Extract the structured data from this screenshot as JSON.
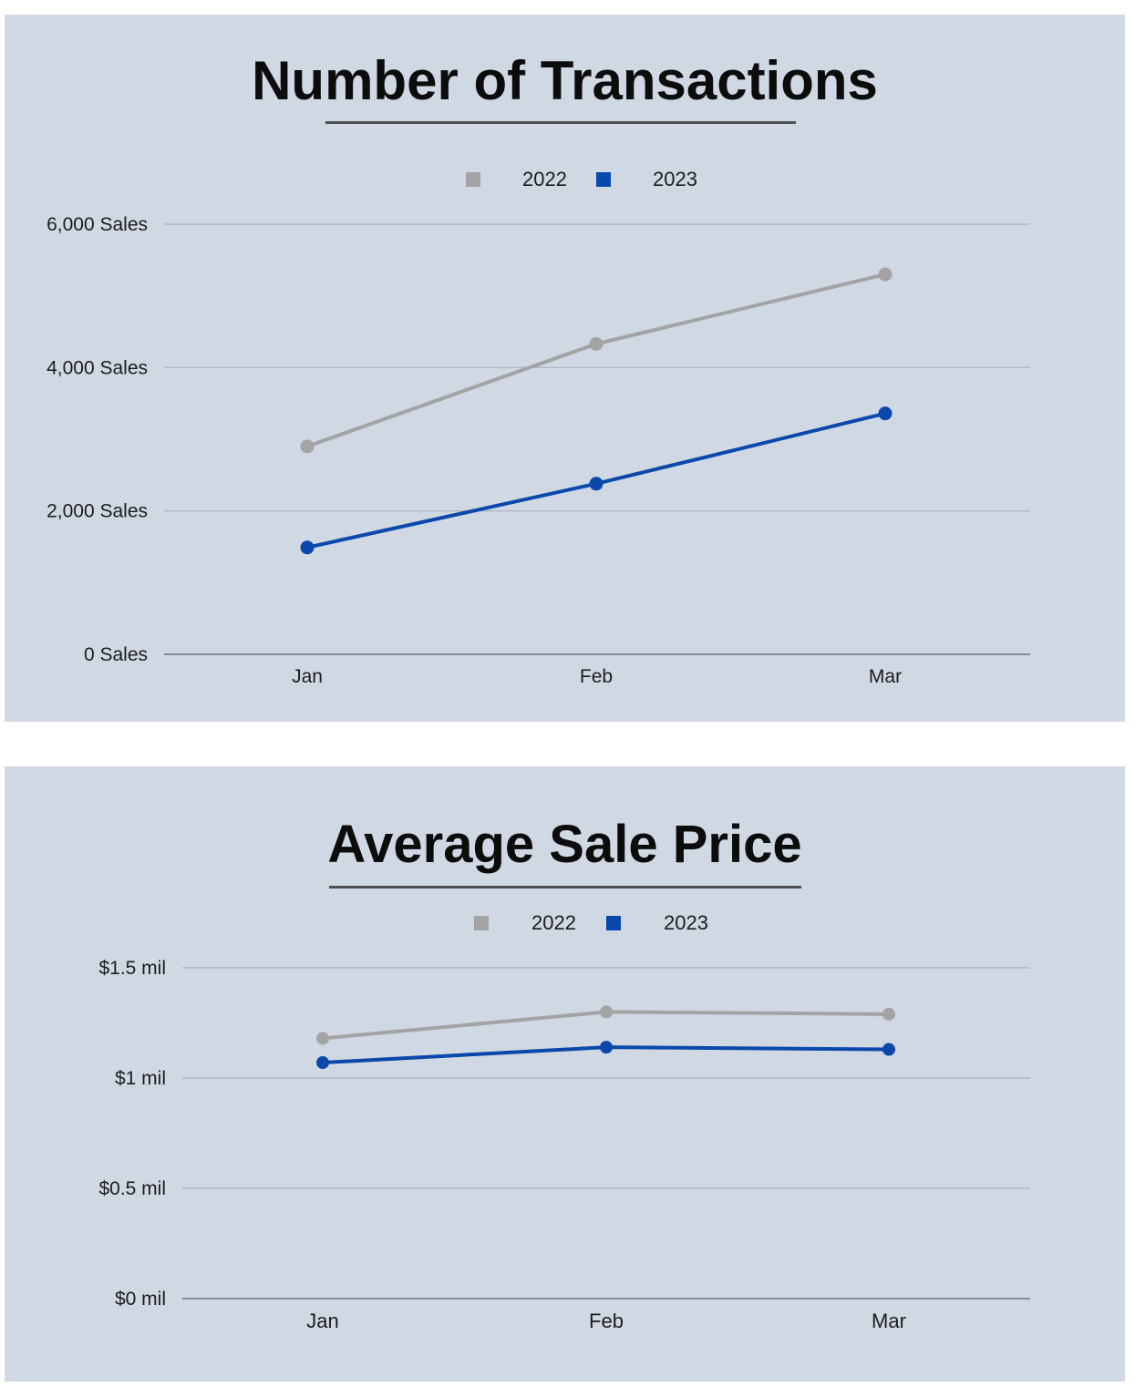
{
  "colors": {
    "panel_bg": "#d0d8e4",
    "series_2022": "#a3a3a3",
    "series_2023": "#0b48ab",
    "gridline": "#a9aebb",
    "axis_line": "#6e7279"
  },
  "chart_data": [
    {
      "type": "line",
      "title": "Number of Transactions",
      "categories": [
        "Jan",
        "Feb",
        "Mar"
      ],
      "series": [
        {
          "name": "2022",
          "values": [
            2900,
            4330,
            5300
          ]
        },
        {
          "name": "2023",
          "values": [
            1490,
            2380,
            3360
          ]
        }
      ],
      "ylim": [
        0,
        6000
      ],
      "yticks": [
        0,
        2000,
        4000,
        6000
      ],
      "ytick_labels": [
        "0 Sales",
        "2,000 Sales",
        "4,000 Sales",
        "6,000 Sales"
      ],
      "legend_position": "top-center",
      "grid": true,
      "xlabel": "",
      "ylabel": ""
    },
    {
      "type": "line",
      "title": "Average Sale Price",
      "categories": [
        "Jan",
        "Feb",
        "Mar"
      ],
      "series": [
        {
          "name": "2022",
          "values": [
            1.18,
            1.3,
            1.29
          ]
        },
        {
          "name": "2023",
          "values": [
            1.07,
            1.14,
            1.13
          ]
        }
      ],
      "ylim": [
        0,
        1.5
      ],
      "yticks": [
        0,
        0.5,
        1,
        1.5
      ],
      "ytick_labels": [
        "$0 mil",
        "$0.5 mil",
        "$1 mil",
        "$1.5 mil"
      ],
      "legend_position": "top-center",
      "grid": true,
      "xlabel": "",
      "ylabel": ""
    }
  ]
}
